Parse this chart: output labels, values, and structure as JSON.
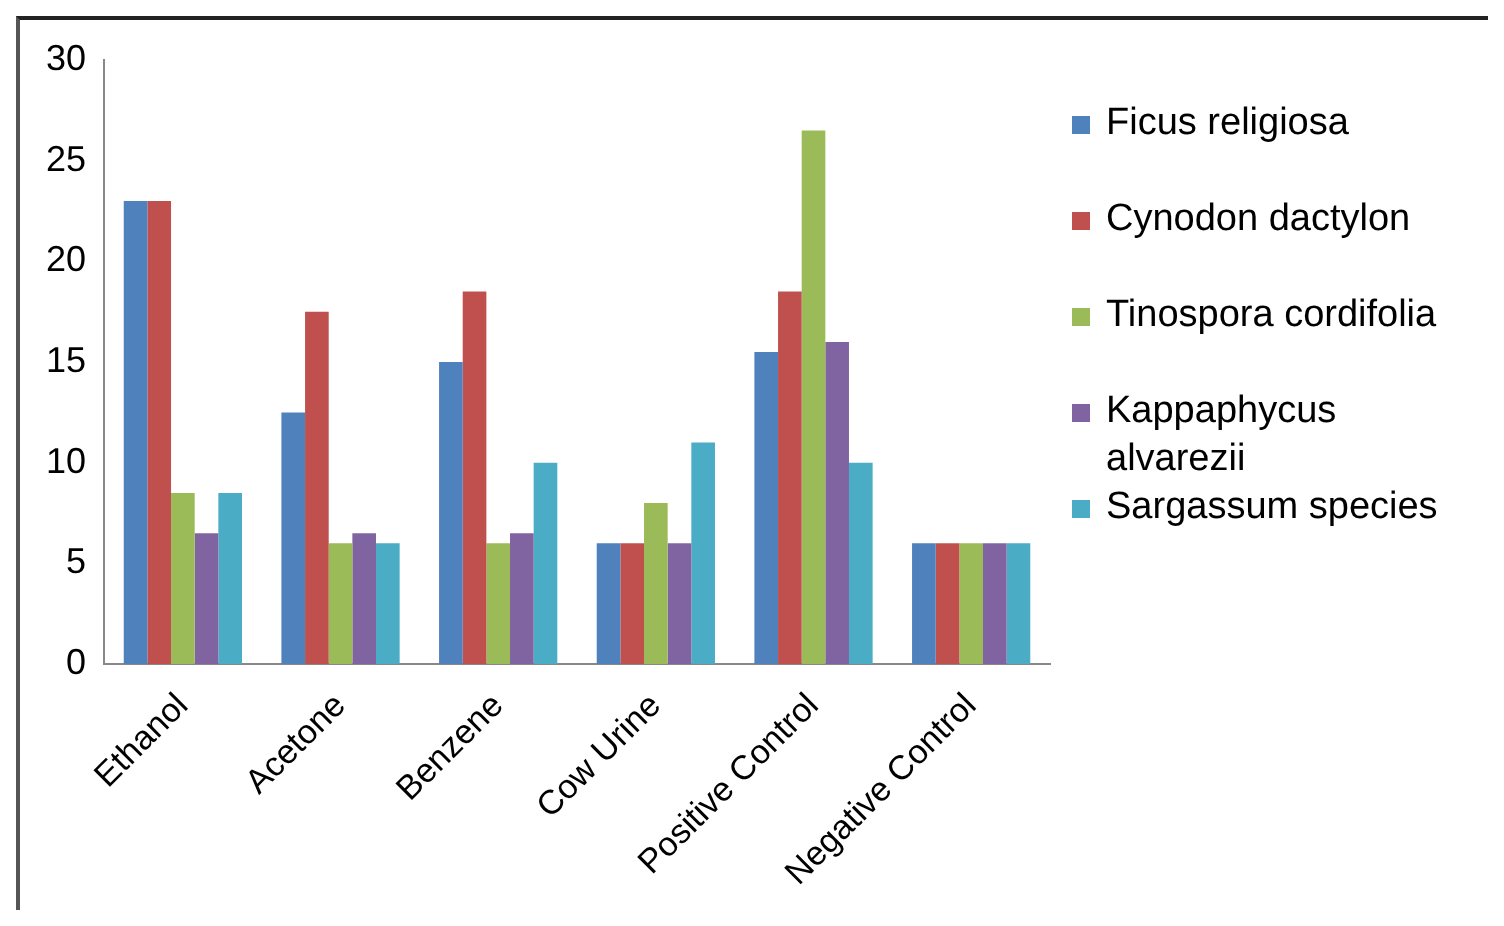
{
  "chart_data": {
    "type": "bar",
    "categories": [
      "Ethanol",
      "Acetone",
      "Benzene",
      "Cow Urine",
      "Positive Control",
      "Negative Control"
    ],
    "series": [
      {
        "name": "Ficus religiosa",
        "color": "#4f81bd",
        "values": [
          23,
          12.5,
          15,
          6,
          15.5,
          6
        ]
      },
      {
        "name": "Cynodon dactylon",
        "color": "#c0504d",
        "values": [
          23,
          17.5,
          18.5,
          6,
          18.5,
          6
        ]
      },
      {
        "name": "Tinospora cordifolia",
        "color": "#9bbb59",
        "values": [
          8.5,
          6,
          6,
          8,
          26.5,
          6
        ]
      },
      {
        "name": "Kappaphycus alvarezii",
        "color": "#8064a2",
        "values": [
          6.5,
          6.5,
          6.5,
          6,
          16,
          6
        ]
      },
      {
        "name": "Sargassum species",
        "color": "#4bacc6",
        "values": [
          8.5,
          6,
          10,
          11,
          10,
          6
        ]
      }
    ],
    "ylim": [
      0,
      30
    ],
    "yticks": [
      0,
      5,
      10,
      15,
      20,
      25,
      30
    ],
    "grid": false,
    "legend": "right"
  }
}
